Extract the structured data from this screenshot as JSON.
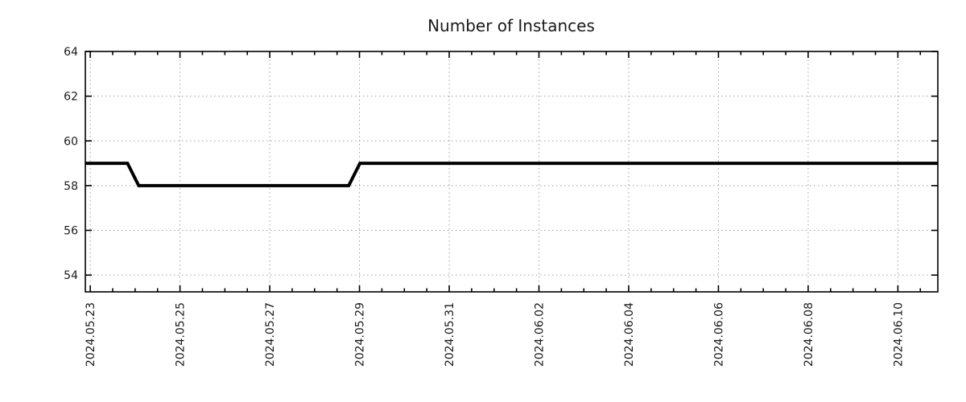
{
  "chart_data": {
    "type": "line",
    "title": "Number of Instances",
    "xlabel": "",
    "ylabel": "",
    "x_unit": "days since 2024-05-23 00:00",
    "xlim": [
      -0.11,
      18.89
    ],
    "ylim": [
      53.25,
      64
    ],
    "x_major_ticks": [
      0,
      2,
      4,
      6,
      8,
      10,
      12,
      14,
      16,
      18
    ],
    "x_tick_labels": [
      "2024.05.23",
      "2024.05.25",
      "2024.05.27",
      "2024.05.29",
      "2024.05.31",
      "2024.06.02",
      "2024.06.04",
      "2024.06.06",
      "2024.06.08",
      "2024.06.10"
    ],
    "x_minor_tick_interval": 0.5,
    "y_major_ticks": [
      54,
      56,
      58,
      60,
      62,
      64
    ],
    "y_tick_labels": [
      "54",
      "56",
      "58",
      "60",
      "62",
      "64"
    ],
    "grid": true,
    "legend": "none",
    "series": [
      {
        "name": "instances",
        "values_description": "59 instances, drops to 58 late on 2024.05.23, stays 58 until rising back to 59 at 2024.05.29, then flat at 59",
        "points": [
          [
            -0.11,
            59
          ],
          [
            0.83,
            59
          ],
          [
            1.08,
            58
          ],
          [
            5.76,
            58
          ],
          [
            6.01,
            59
          ],
          [
            18.89,
            59
          ]
        ]
      }
    ],
    "colors": {
      "line": "#000000",
      "grid": "#a0a0a0",
      "frame": "#000000",
      "text": "#1a1a1a",
      "background": "#ffffff"
    }
  }
}
